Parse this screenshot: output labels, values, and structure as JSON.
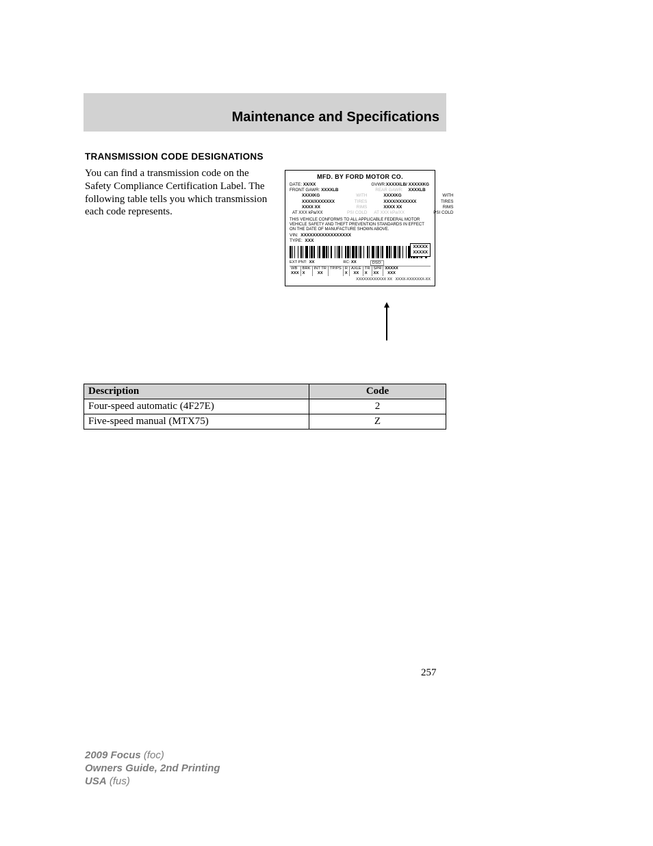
{
  "header": {
    "title": "Maintenance and Specifications",
    "bg_color": "#d2d2d2",
    "title_color": "#000000",
    "title_fontsize": 20
  },
  "section": {
    "title": "TRANSMISSION CODE DESIGNATIONS",
    "body": "You can find a transmission code on the Safety Compliance Certification Label. The following table tells you which transmission each code represents."
  },
  "label": {
    "title": "MFD. BY FORD MOTOR CO.",
    "date_label": "DATE:",
    "date_val": "XX/XX",
    "gvwr_label": "GVWR:",
    "gvwr_val": "XXXXXLB/ XXXXXKG",
    "front_gawr_label": "FRONT GAWR:",
    "front_gawr_val": "XXXXLB",
    "front_kg": "XXXXKG",
    "rear_gawr_label": "REAR GAWR:",
    "rear_gawr_val": "XXXXLB",
    "rear_kg": "XXXXKG",
    "with": "WITH",
    "tiresize": "XXXX/XXXXXXX",
    "tires": "TIRES",
    "rimsize": "XXXX XX",
    "rims": "RIMS",
    "at_front": "AT   XXX   kPa/XX",
    "at_rear": "AT   XXX   kPa/XX",
    "psi_cold": "PSI COLD",
    "compliance": "THIS VEHICLE CONFORMS TO ALL APPLICABLE FEDERAL MOTOR VEHICLE SAFETY AND THEFT PREVENTION STANDARDS IN EFFECT ON THE DATE OF MANUFACTURE SHOWN ABOVE.",
    "vin_label": "VIN:",
    "vin_val": "XXXXXXXXXXXXXXXXX",
    "type_label": "TYPE:",
    "type_val": "XXX",
    "paint1": "XXXXX",
    "paint2": "XXXXX",
    "ext_pnt_label": "EXT PNT:",
    "ext_pnt_val": "XX",
    "rc_label": "RC:",
    "rc_val": "XX",
    "dso_label": "DSO:",
    "wb": "WB",
    "brk": "BRK",
    "int_tr": "INT TR",
    "tpps": "TP/PS",
    "r": "R",
    "axle": "AXLE",
    "tr": "TR",
    "spr": "SPR",
    "xxx": "XXX",
    "x": "X",
    "xx": "XX",
    "xxxxx": "XXXXX",
    "serial1": "XXXXXXXXXXXX  XX",
    "serial2": "XXXX-XXXXXXX-XX"
  },
  "table": {
    "headers": {
      "desc": "Description",
      "code": "Code"
    },
    "rows": [
      {
        "desc": "Four-speed automatic (4F27E)",
        "code": "2"
      },
      {
        "desc": "Five-speed manual (MTX75)",
        "code": "Z"
      }
    ],
    "header_bg": "#d2d2d2"
  },
  "page_number": "257",
  "footer": {
    "model": "2009 Focus",
    "model_code": "(foc)",
    "guide": "Owners Guide, 2nd Printing",
    "region": "USA",
    "region_code": "(fus)",
    "text_color": "#7d7d7d"
  },
  "barcode_widths": [
    3,
    1,
    1,
    2,
    1,
    4,
    1,
    3,
    2,
    1,
    1,
    3,
    4,
    2,
    1,
    1,
    3,
    1,
    2,
    4,
    1,
    1,
    2,
    3,
    4,
    1,
    2,
    1,
    1,
    3,
    2,
    4,
    1,
    2,
    1,
    1,
    3,
    2,
    1,
    4,
    2,
    1,
    3,
    1,
    1,
    2,
    4,
    1,
    3,
    2,
    1,
    1,
    2,
    3,
    1,
    4,
    2,
    1,
    1,
    3,
    4,
    2,
    1,
    1,
    3,
    2,
    1,
    1,
    2,
    4,
    3,
    1,
    2,
    1,
    1,
    3,
    4,
    2,
    1,
    1,
    2,
    3,
    1,
    4,
    1,
    2,
    3,
    1,
    2,
    1,
    4,
    1,
    3,
    2,
    1,
    1,
    2,
    4,
    3,
    1
  ]
}
